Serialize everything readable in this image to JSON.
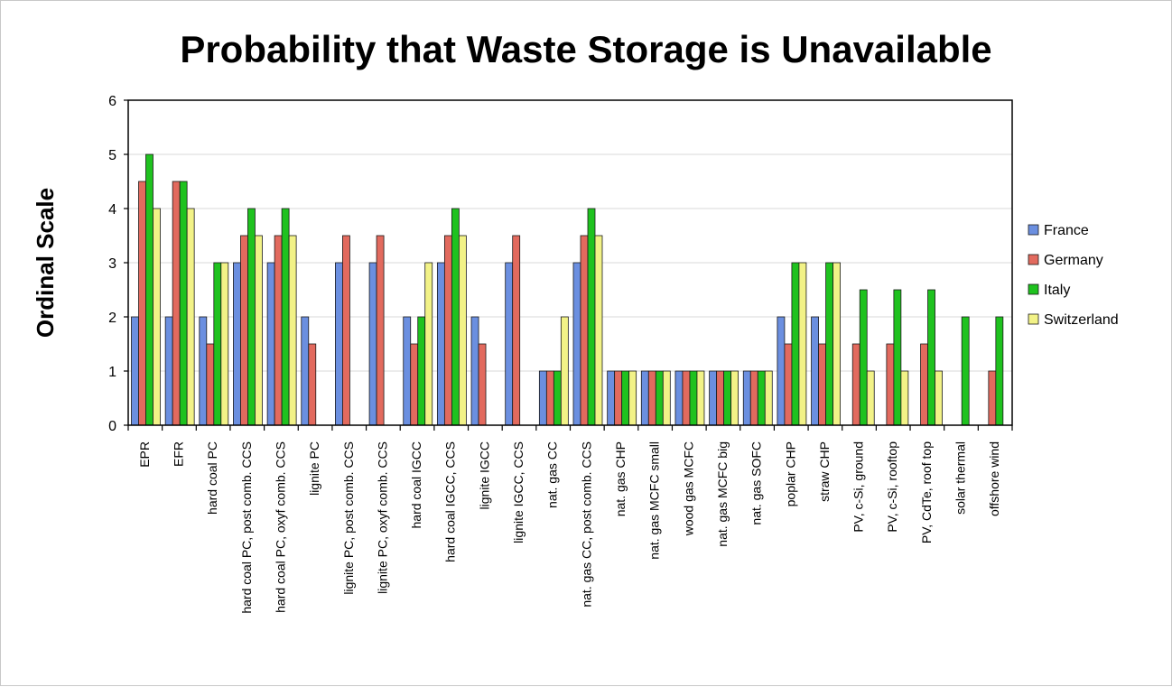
{
  "chart_data": {
    "type": "bar",
    "title": "Probability that Waste Storage is Unavailable",
    "xlabel": "",
    "ylabel": "Ordinal Scale",
    "ylim": [
      0,
      6
    ],
    "yticks": [
      "0",
      "1",
      "2",
      "3",
      "4",
      "5",
      "6"
    ],
    "grid": true,
    "legend_position": "right",
    "categories": [
      "EPR",
      "EFR",
      "hard coal PC",
      "hard coal PC, post comb. CCS",
      "hard coal PC, oxyf comb. CCS",
      "lignite PC",
      "lignite PC, post comb. CCS",
      "lignite PC, oxyf comb. CCS",
      "hard coal IGCC",
      "hard coal IGCC, CCS",
      "lignite IGCC",
      "lignite IGCC, CCS",
      "nat. gas CC",
      "nat. gas CC, post comb. CCS",
      "nat. gas CHP",
      "nat. gas MCFC small",
      "wood gas MCFC",
      "nat. gas MCFC big",
      "nat. gas SOFC",
      "poplar CHP",
      "straw CHP",
      "PV, c-Si, ground",
      "PV, c-Si, rooftop",
      "PV, CdTe, roof top",
      "solar thermal",
      "offshore wind"
    ],
    "series": [
      {
        "name": "France",
        "color": "#6b8fe0",
        "values": [
          2,
          2,
          2,
          3,
          3,
          2,
          3,
          3,
          2,
          3,
          2,
          3,
          1,
          3,
          1,
          1,
          1,
          1,
          1,
          2,
          2,
          null,
          null,
          null,
          null,
          null
        ]
      },
      {
        "name": "Germany",
        "color": "#e26a5e",
        "values": [
          4.5,
          4.5,
          1.5,
          3.5,
          3.5,
          1.5,
          3.5,
          3.5,
          1.5,
          3.5,
          1.5,
          3.5,
          1,
          3.5,
          1,
          1,
          1,
          1,
          1,
          1.5,
          1.5,
          1.5,
          1.5,
          1.5,
          null,
          1
        ]
      },
      {
        "name": "Italy",
        "color": "#1fc21f",
        "values": [
          5,
          4.5,
          3,
          4,
          4,
          null,
          null,
          null,
          2,
          4,
          null,
          null,
          1,
          4,
          1,
          1,
          1,
          1,
          1,
          3,
          3,
          2.5,
          2.5,
          2.5,
          2,
          2
        ]
      },
      {
        "name": "Switzerland",
        "color": "#f2f287",
        "values": [
          4,
          4,
          3,
          3.5,
          3.5,
          null,
          null,
          null,
          3,
          3.5,
          null,
          null,
          2,
          3.5,
          1,
          1,
          1,
          1,
          1,
          3,
          3,
          1,
          1,
          1,
          null,
          null
        ]
      }
    ]
  }
}
